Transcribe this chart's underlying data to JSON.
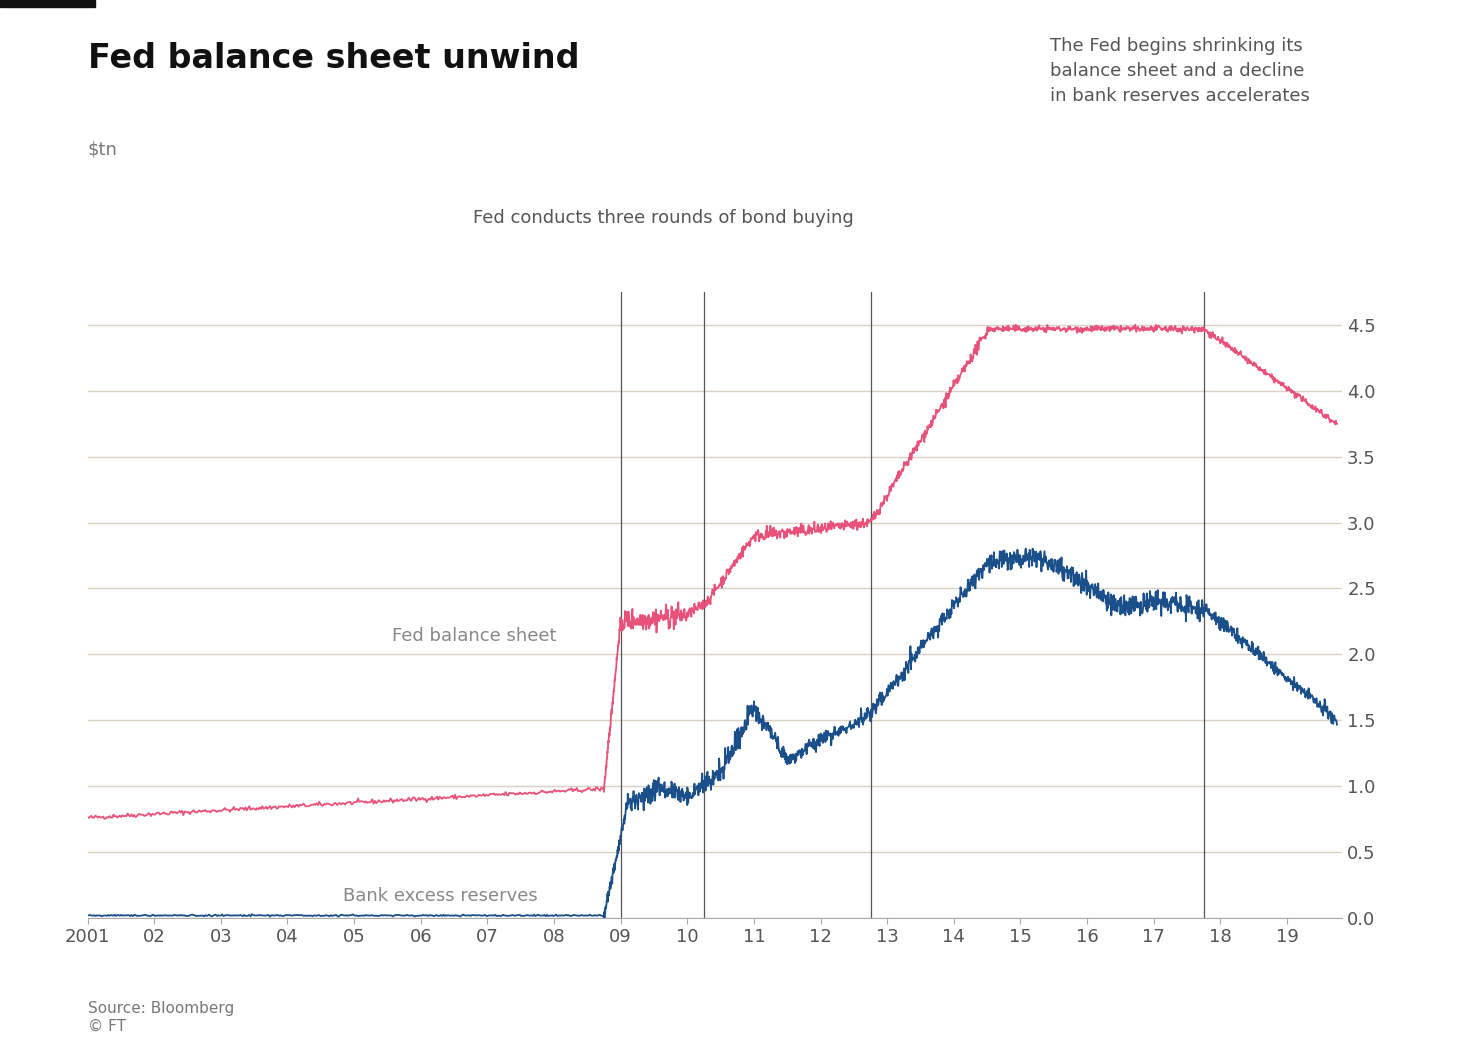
{
  "title": "Fed balance sheet unwind",
  "ylabel": "$tn",
  "source_text": "Source: Bloomberg\n© FT",
  "annotation1_text": "Fed conducts three rounds of bond buying",
  "annotation2_text": "The Fed begins shrinking its\nbalance sheet and a decline\nin bank reserves accelerates",
  "vlines": [
    2009.0,
    2010.25,
    2012.75,
    2017.75
  ],
  "ylim": [
    0,
    4.75
  ],
  "yticks": [
    0,
    0.5,
    1.0,
    1.5,
    2.0,
    2.5,
    3.0,
    3.5,
    4.0,
    4.5
  ],
  "xlim": [
    2001.0,
    2019.83
  ],
  "xticks": [
    2001,
    2002,
    2003,
    2004,
    2005,
    2006,
    2007,
    2008,
    2009,
    2010,
    2011,
    2012,
    2013,
    2014,
    2015,
    2016,
    2017,
    2018,
    2019
  ],
  "xticklabels": [
    "2001",
    "02",
    "03",
    "04",
    "05",
    "06",
    "07",
    "08",
    "09",
    "10",
    "11",
    "12",
    "13",
    "14",
    "15",
    "16",
    "17",
    "18",
    "19"
  ],
  "grid_color": "#d9d0c6",
  "background_color": "#ffffff",
  "fed_color": "#e8517a",
  "reserves_color": "#1a4f8a",
  "label_fed": "Fed balance sheet",
  "label_reserves": "Bank excess reserves",
  "title_fontsize": 24,
  "label_fontsize": 13,
  "tick_fontsize": 13,
  "annotation_fontsize": 13
}
